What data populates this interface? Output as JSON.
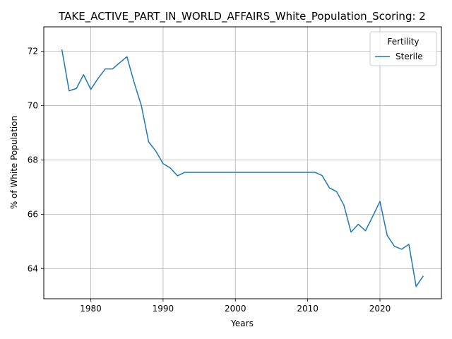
{
  "chart_data": {
    "type": "line",
    "title": "TAKE_ACTIVE_PART_IN_WORLD_AFFAIRS_White_Population_Scoring: 2",
    "xlabel": "Years",
    "ylabel": "% of White Population",
    "xlim": [
      1973.5,
      2028.5
    ],
    "ylim": [
      62.9,
      72.9
    ],
    "xticks": [
      1980,
      1990,
      2000,
      2010,
      2020
    ],
    "yticks": [
      64,
      66,
      68,
      70,
      72
    ],
    "grid": true,
    "legend": {
      "title": "Fertility",
      "placement": "top-right"
    },
    "series": [
      {
        "name": "Sterile",
        "color": "#1f77b4",
        "x": [
          1976,
          1977,
          1978,
          1979,
          1980,
          1981,
          1982,
          1983,
          1984,
          1985,
          1986,
          1987,
          1988,
          1989,
          1990,
          1991,
          1992,
          1993,
          1994,
          1995,
          1996,
          1997,
          1998,
          1999,
          2000,
          2001,
          2002,
          2003,
          2004,
          2005,
          2006,
          2007,
          2008,
          2009,
          2010,
          2011,
          2012,
          2013,
          2014,
          2015,
          2016,
          2017,
          2018,
          2019,
          2020,
          2021,
          2022,
          2023,
          2024,
          2025,
          2026
        ],
        "y": [
          72.07,
          70.55,
          70.63,
          71.14,
          70.6,
          71.0,
          71.35,
          71.35,
          71.58,
          71.8,
          70.85,
          70.0,
          68.67,
          68.33,
          67.87,
          67.71,
          67.42,
          67.55,
          67.55,
          67.55,
          67.55,
          67.55,
          67.55,
          67.55,
          67.55,
          67.55,
          67.55,
          67.55,
          67.55,
          67.55,
          67.55,
          67.55,
          67.55,
          67.55,
          67.55,
          67.55,
          67.43,
          66.98,
          66.84,
          66.35,
          65.35,
          65.64,
          65.4,
          65.93,
          66.48,
          65.23,
          64.83,
          64.72,
          64.9,
          63.35,
          63.74
        ]
      }
    ]
  }
}
